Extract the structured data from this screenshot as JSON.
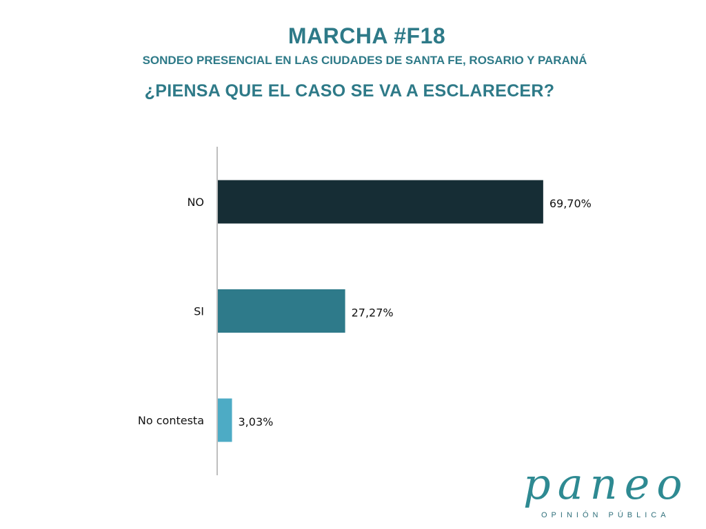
{
  "header": {
    "title": "MARCHA #F18",
    "subtitle": "SONDEO PRESENCIAL EN LAS CIUDADES DE SANTA FE, ROSARIO Y PARANÁ",
    "question": "¿PIENSA QUE EL CASO SE VA A ESCLARECER?"
  },
  "chart_data": {
    "type": "bar",
    "orientation": "horizontal",
    "categories": [
      "NO",
      "SI",
      "No contesta"
    ],
    "values": [
      69.7,
      27.27,
      3.03
    ],
    "value_labels": [
      "69,70%",
      "27,27%",
      "3,03%"
    ],
    "colors": [
      "#162d35",
      "#2e7a8a",
      "#4dabc5"
    ],
    "xlim": [
      0,
      100
    ],
    "grid": false,
    "legend": "none"
  },
  "logo": {
    "word": "paneo",
    "tagline": "OPINIÓN PÚBLICA",
    "color": "#2e8a92"
  }
}
